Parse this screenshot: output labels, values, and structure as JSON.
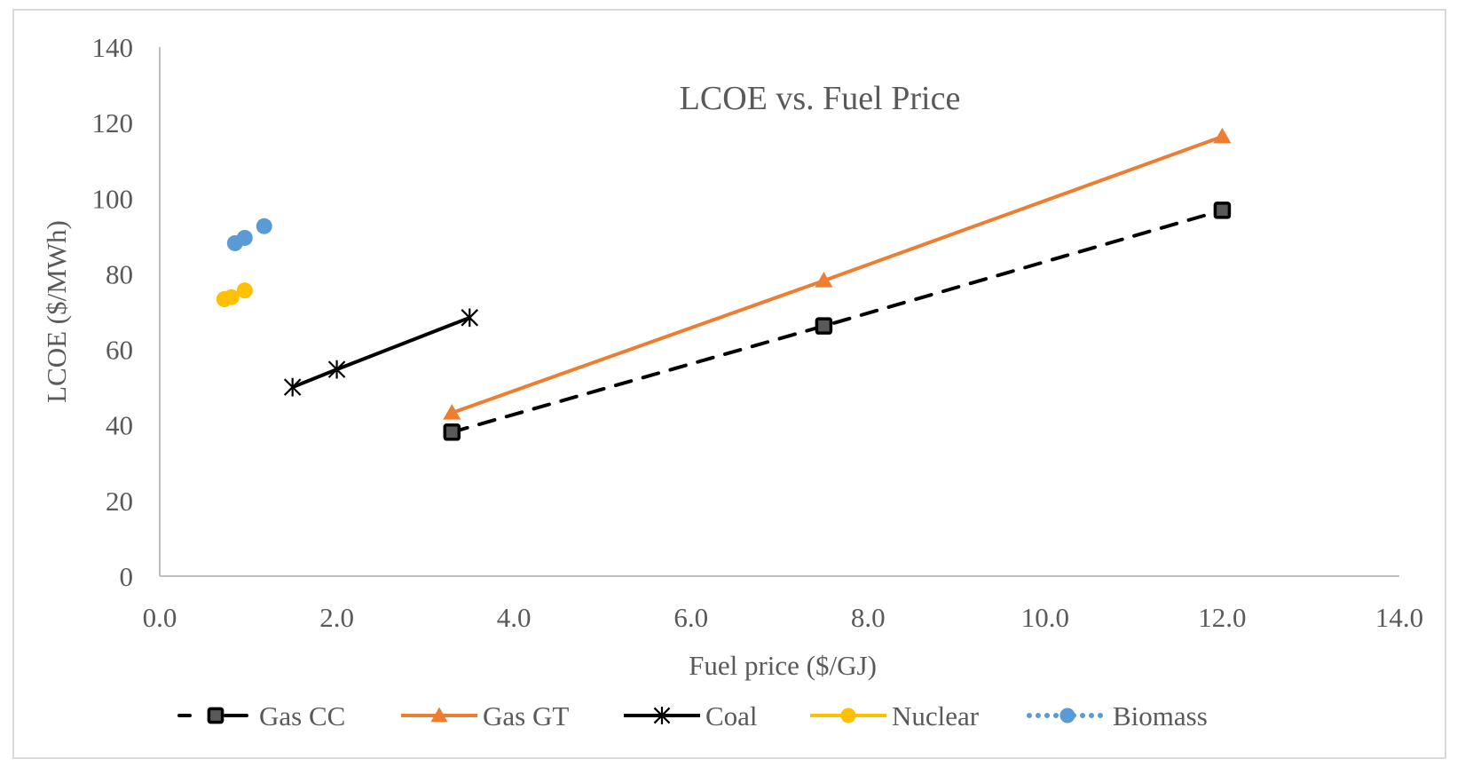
{
  "chart_data": {
    "type": "line",
    "title": "LCOE vs. Fuel Price",
    "xlabel": "Fuel price ($/GJ)",
    "ylabel": "LCOE ($/MWh)",
    "xlim": [
      0,
      14
    ],
    "ylim": [
      0,
      140
    ],
    "x_ticks": [
      0,
      2,
      4,
      6,
      8,
      10,
      12,
      14
    ],
    "x_tick_labels": [
      "0.0",
      "2.0",
      "4.0",
      "6.0",
      "8.0",
      "10.0",
      "12.0",
      "14.0"
    ],
    "y_ticks": [
      0,
      20,
      40,
      60,
      80,
      100,
      120,
      140
    ],
    "y_tick_labels": [
      "0",
      "20",
      "40",
      "60",
      "80",
      "100",
      "120",
      "140"
    ],
    "grid": false,
    "legend_position": "bottom",
    "series": [
      {
        "name": "Gas CC",
        "color": "#000000",
        "marker": "square",
        "marker_fill": "#595959",
        "line": "dashed",
        "show_line": true,
        "x": [
          3.3,
          7.5,
          12.0
        ],
        "y": [
          38.1,
          66.2,
          96.8
        ]
      },
      {
        "name": "Gas GT",
        "color": "#ED7D31",
        "marker": "triangle",
        "marker_fill": "#ED7D31",
        "line": "solid",
        "show_line": true,
        "x": [
          3.3,
          7.5,
          12.0
        ],
        "y": [
          43.2,
          78.2,
          116.3
        ]
      },
      {
        "name": "Coal",
        "color": "#000000",
        "marker": "star",
        "marker_fill": "#000000",
        "line": "solid",
        "show_line": true,
        "x": [
          1.5,
          2.0,
          3.5
        ],
        "y": [
          50.0,
          54.7,
          68.4
        ]
      },
      {
        "name": "Nuclear",
        "color": "#FFC000",
        "marker": "circle",
        "marker_fill": "#FFC000",
        "line": "solid",
        "show_line": false,
        "x": [
          0.73,
          0.81,
          0.96
        ],
        "y": [
          73.3,
          73.8,
          75.6
        ]
      },
      {
        "name": "Biomass",
        "color": "#5B9BD5",
        "marker": "circle",
        "marker_fill": "#5B9BD5",
        "line": "dotted",
        "show_line": false,
        "x": [
          0.85,
          0.96,
          1.18
        ],
        "y": [
          88.1,
          89.5,
          92.6
        ]
      }
    ]
  }
}
